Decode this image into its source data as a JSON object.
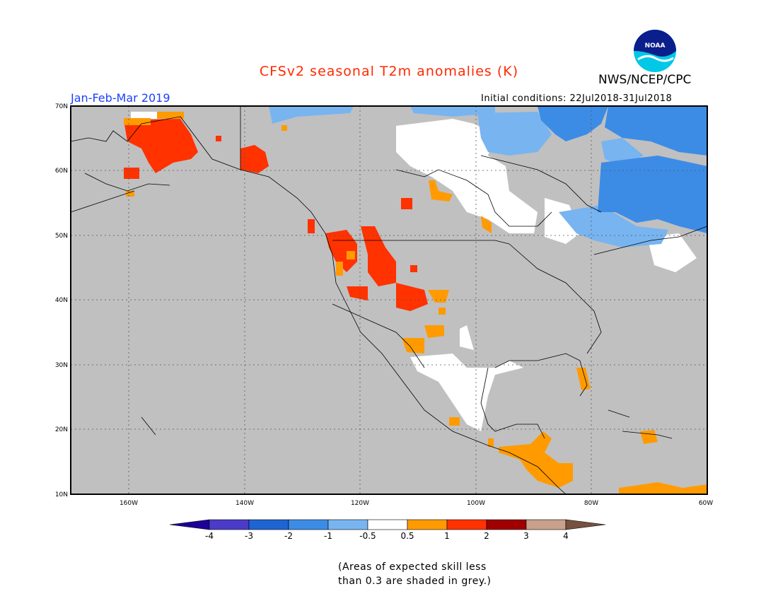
{
  "header": {
    "title": "CFSv2 seasonal T2m anomalies (K)",
    "agency": "NWS/NCEP/CPC",
    "season": "Jan-Feb-Mar 2019",
    "initial_conditions": "Initial conditions: 22Jul2018-31Jul2018",
    "logo_text": "NOAA"
  },
  "map": {
    "lat_labels": [
      "70N",
      "60N",
      "50N",
      "40N",
      "30N",
      "20N",
      "10N"
    ],
    "lon_labels": [
      "160W",
      "140W",
      "120W",
      "100W",
      "80W",
      "60W"
    ],
    "background_color": "#c0c0c0"
  },
  "colorbar": {
    "labels": [
      "-4",
      "-3",
      "-2",
      "-1",
      "-0.5",
      "0.5",
      "1",
      "2",
      "3",
      "4"
    ],
    "colors": [
      "#1e0096",
      "#4a3cc8",
      "#1e64d2",
      "#3c8ce6",
      "#78b4f0",
      "#ffffff",
      "#ff9b00",
      "#ff3200",
      "#a00000",
      "#c8a08c",
      "#785040"
    ]
  },
  "footnote": {
    "line1": "(Areas of expected skill less",
    "line2": "than 0.3 are shaded in grey.)"
  }
}
